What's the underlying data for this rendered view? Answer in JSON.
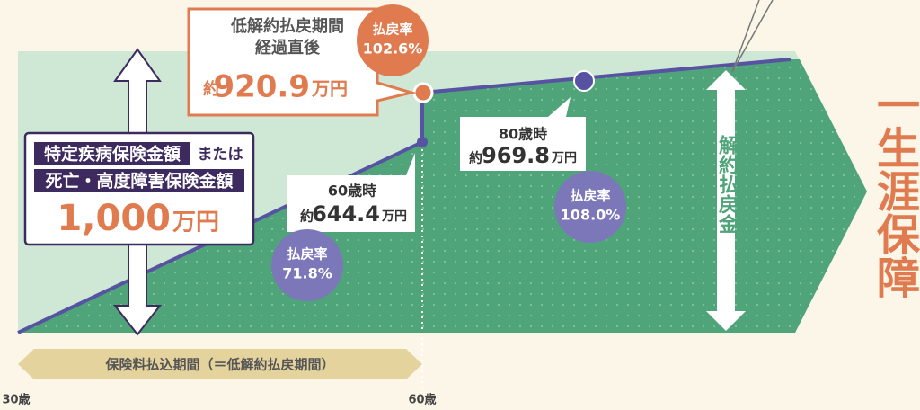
{
  "callout": {
    "line1": "低解約払戻期間",
    "line2": "経過直後",
    "prefix": "約",
    "amount": "920.9",
    "unit": "万円",
    "badge": {
      "label": "払戻率",
      "rate": "102.6%"
    }
  },
  "coverage": {
    "line1": "特定疾病保険金額",
    "or": "または",
    "line2": "死亡・高度障害保険金額",
    "amount": "1,000",
    "unit": "万円"
  },
  "age60": {
    "title": "60歳時",
    "prefix": "約",
    "amount": "644.4",
    "unit": "万円",
    "badge": {
      "label": "払戻率",
      "rate": "71.8%"
    }
  },
  "age80": {
    "title": "80歳時",
    "prefix": "約",
    "amount": "969.8",
    "unit": "万円",
    "badge": {
      "label": "払戻率",
      "rate": "108.0%"
    }
  },
  "refund_label": "解約払戻金",
  "lifetime": "一生涯保障",
  "period": "保険料払込期間（＝低解約払戻期間）",
  "axis": {
    "start": "30歳",
    "end": "60歳"
  }
}
